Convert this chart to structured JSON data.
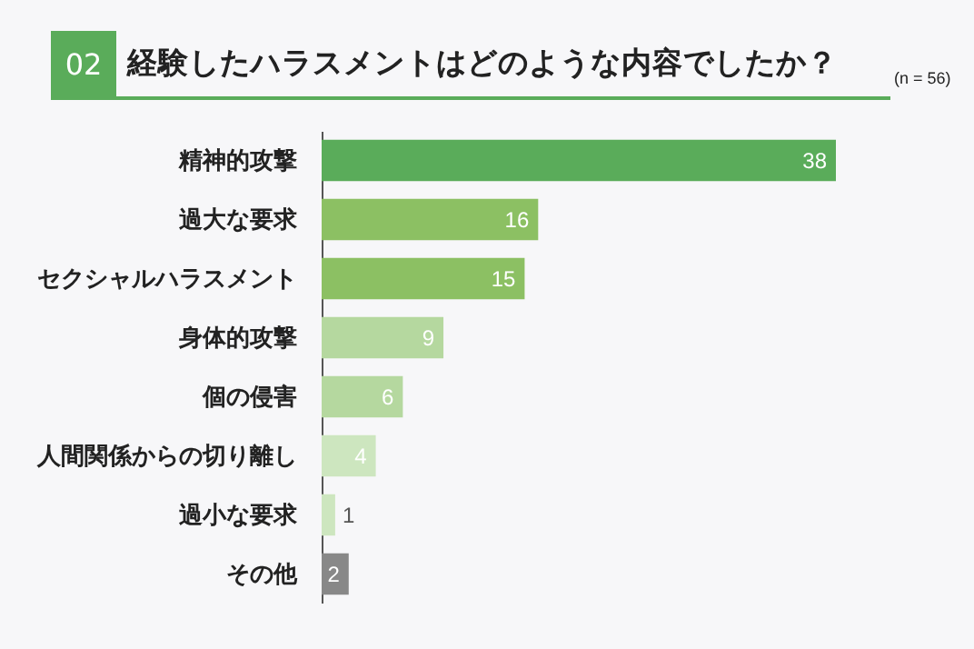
{
  "chart_data": {
    "type": "bar",
    "orientation": "horizontal",
    "title": "経験したハラスメントはどのような内容でしたか？",
    "subtitle": "(n = 56)",
    "annotations": [
      "02"
    ],
    "categories": [
      "精神的攻撃",
      "過大な要求",
      "セクシャルハラスメント",
      "身体的攻撃",
      "個の侵害",
      "人間関係からの切り離し",
      "過小な要求",
      "その他"
    ],
    "values": [
      38,
      16,
      15,
      9,
      6,
      4,
      1,
      2
    ],
    "colors": [
      "#5aac5a",
      "#8cc063",
      "#8cc063",
      "#b5d89f",
      "#b5d89f",
      "#cde6bf",
      "#cde6bf",
      "#888888"
    ],
    "xlim": [
      0,
      38
    ],
    "data_labels": true,
    "tick_labels": "y"
  }
}
